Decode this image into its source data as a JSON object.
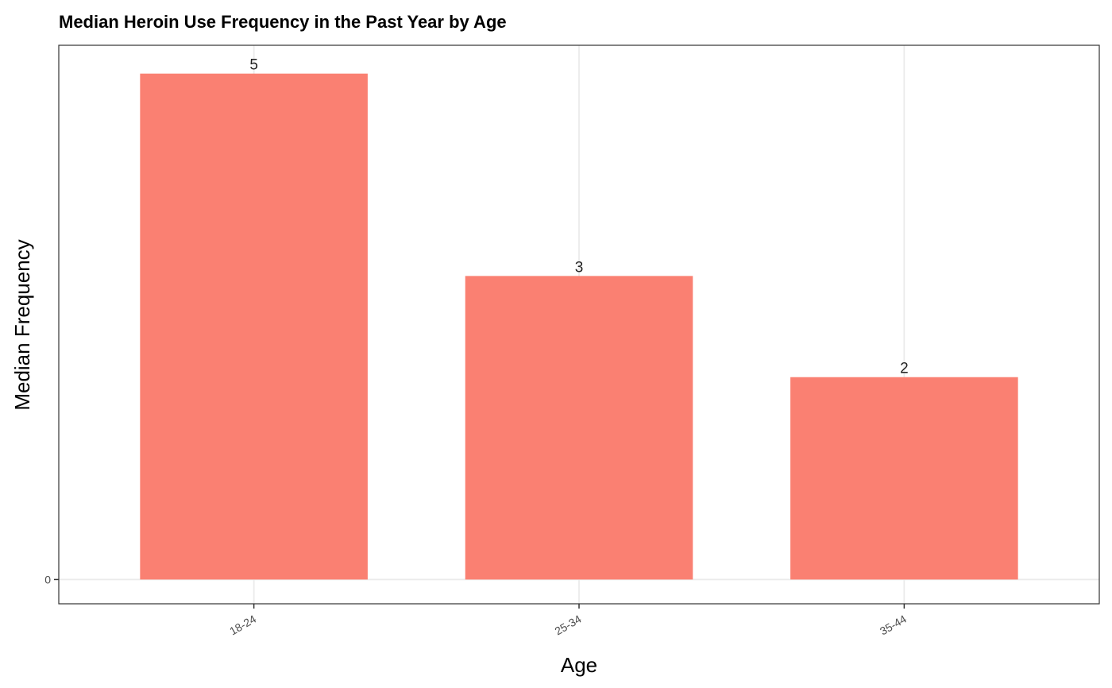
{
  "chart_data": {
    "type": "bar",
    "title": "Median Heroin Use Frequency in the Past Year by Age",
    "xlabel": "Age",
    "ylabel": "Median Frequency",
    "categories": [
      "18-24",
      "25-34",
      "35-44"
    ],
    "values": [
      5,
      3,
      2
    ],
    "data_labels": [
      "5",
      "3",
      "2"
    ],
    "y_ticks": [
      0
    ],
    "y_tick_labels": [
      "0"
    ],
    "ylim": [
      -0.24,
      5.28
    ],
    "bar_color": "#fa8072",
    "grid": true,
    "legend": "none"
  }
}
